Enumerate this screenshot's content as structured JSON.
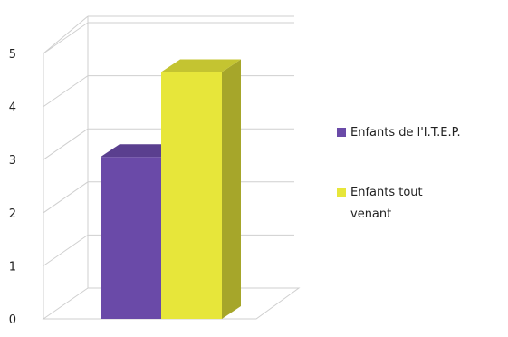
{
  "chart_data": {
    "type": "bar",
    "three_d": true,
    "categories": [
      ""
    ],
    "series": [
      {
        "name": "Enfants de l'I.T.E.P.",
        "values": [
          3.05
        ],
        "color": "#6a4aa8"
      },
      {
        "name": "Enfants tout venant",
        "values": [
          4.65
        ],
        "color": "#e7e63a"
      }
    ],
    "y_ticks": [
      "0",
      "1",
      "2",
      "3",
      "4",
      "5"
    ],
    "ylim": [
      0,
      5
    ],
    "grid": true,
    "legend_position": "right",
    "legend_lines": [
      [
        "Enfants de l'I.T.E.P."
      ],
      [
        "Enfants tout",
        "venant"
      ]
    ]
  }
}
